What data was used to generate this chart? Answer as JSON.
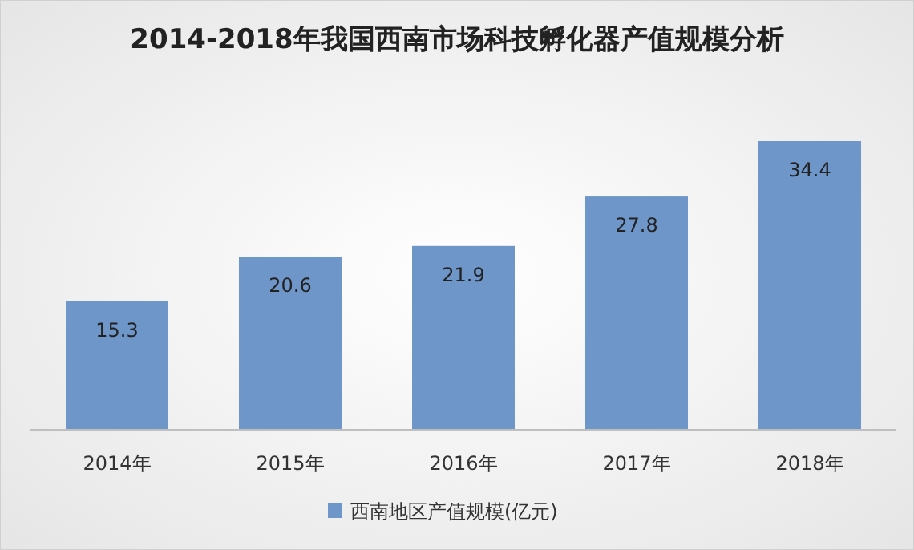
{
  "chart_data": {
    "type": "bar",
    "title": "2014-2018年我国西南市场科技孵化器产值规模分析",
    "categories": [
      "2014年",
      "2015年",
      "2016年",
      "2017年",
      "2018年"
    ],
    "series": [
      {
        "name": "西南地区产值规模(亿元)",
        "color": "#6f96c9",
        "values": [
          15.3,
          20.6,
          21.9,
          27.8,
          34.4
        ]
      }
    ],
    "data_labels": true,
    "legend": "bottom"
  }
}
